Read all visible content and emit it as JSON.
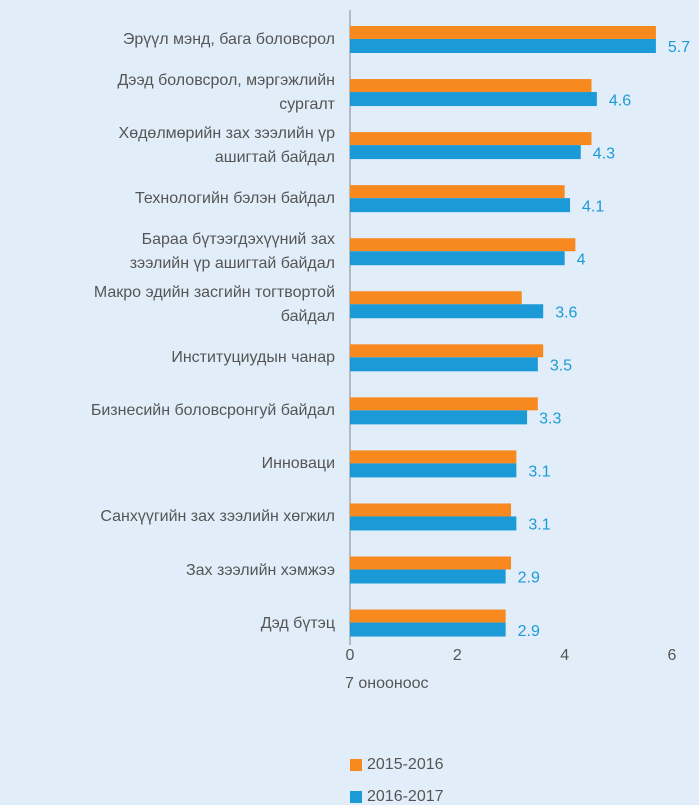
{
  "chart_data": {
    "type": "bar",
    "orientation": "horizontal",
    "categories": [
      "Эрүүл мэнд, бага боловсрол",
      "Дээд боловсрол, мэргэжлийн\nсургалт",
      "Хөдөлмөрийн зах зээлийн үр\nашигтай байдал",
      "Технологийн бэлэн байдал",
      "Бараа бүтээгдэхүүний зах\nзээлийн үр ашигтай байдал",
      "Макро эдийн засгийн тогтвортой\nбайдал",
      "Институциудын чанар",
      "Бизнесийн боловсронгуй байдал",
      "Инноваци",
      "Санхүүгийн зах зээлийн хөгжил",
      "Зах зээлийн хэмжээ",
      "Дэд бүтэц"
    ],
    "series": [
      {
        "name": "2015-2016",
        "color": "#f7891f",
        "values": [
          5.7,
          4.5,
          4.5,
          4.0,
          4.2,
          3.2,
          3.6,
          3.5,
          3.1,
          3.0,
          3.0,
          2.9
        ]
      },
      {
        "name": "2016-2017",
        "color": "#1b9ad7",
        "values": [
          5.7,
          4.6,
          4.3,
          4.1,
          4.0,
          3.6,
          3.5,
          3.3,
          3.1,
          3.1,
          2.9,
          2.9
        ],
        "show_value_labels": true
      }
    ],
    "xlabel": "7 онооноос",
    "xlim": [
      0,
      6
    ],
    "xticks": [
      0,
      2,
      4,
      6
    ],
    "grid": false,
    "legend": "bottom"
  }
}
